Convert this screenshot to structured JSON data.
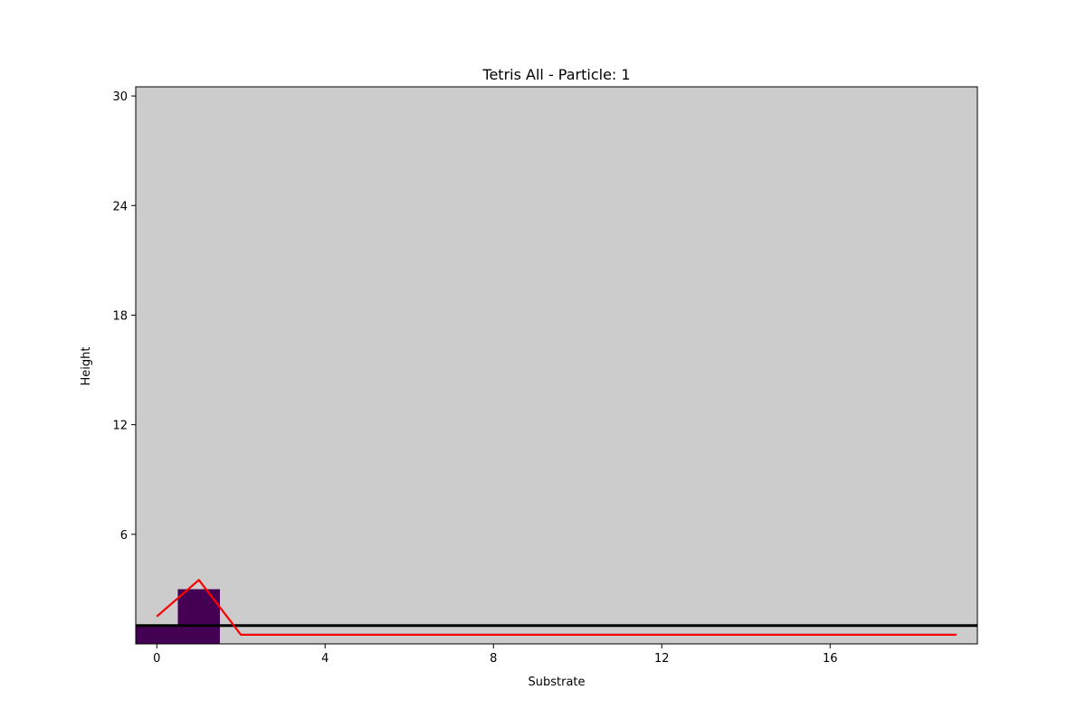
{
  "chart_data": {
    "type": "heatmap",
    "title": "Tetris All - Particle: 1",
    "xlabel": "Substrate",
    "ylabel": "Height",
    "xlim": [
      -0.5,
      19.5
    ],
    "ylim": [
      0,
      30.5
    ],
    "xticks": [
      0,
      4,
      8,
      12,
      16
    ],
    "yticks": [
      6,
      12,
      18,
      24,
      30
    ],
    "grid": false,
    "legend": "none",
    "colors": {
      "background": "#cccccc",
      "filled_cell": "#440154",
      "profile_line": "#ff0000",
      "reference_line": "#000000"
    },
    "filled_cells": [
      {
        "x": 0,
        "y_from": 0,
        "y_to": 1
      },
      {
        "x": 1,
        "y_from": 0,
        "y_to": 1
      },
      {
        "x": 1,
        "y_from": 1,
        "y_to": 3
      }
    ],
    "series": [
      {
        "type": "line",
        "color": "#ff0000",
        "x": [
          0,
          1,
          2,
          3,
          4,
          5,
          6,
          7,
          8,
          9,
          10,
          11,
          12,
          13,
          14,
          15,
          16,
          17,
          18,
          19
        ],
        "y": [
          1.5,
          3.5,
          0.5,
          0.5,
          0.5,
          0.5,
          0.5,
          0.5,
          0.5,
          0.5,
          0.5,
          0.5,
          0.5,
          0.5,
          0.5,
          0.5,
          0.5,
          0.5,
          0.5,
          0.5
        ]
      }
    ],
    "reference_line": {
      "y": 1.0,
      "color": "#000000"
    }
  }
}
